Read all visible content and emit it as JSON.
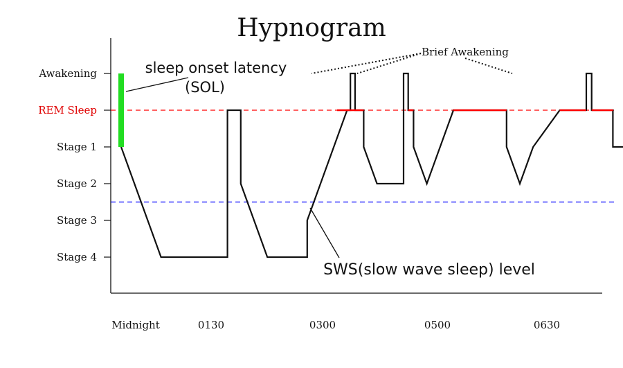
{
  "chart_data": {
    "type": "line",
    "title": "Hypnogram",
    "xlabel": "",
    "ylabel": "",
    "x_tick_labels": [
      "Midnight",
      "0130",
      "0300",
      "0500",
      "0630"
    ],
    "y_categories": [
      "Awakening",
      "REM Sleep",
      "Stage 1",
      "Stage 2",
      "Stage 3",
      "Stage 4"
    ],
    "y_values": {
      "Awakening": 5,
      "REM Sleep": 4,
      "Stage 1": 3,
      "Stage 2": 2,
      "Stage 3": 1,
      "Stage 4": 0
    },
    "x_tick_positions_hours": [
      0,
      1.5,
      3,
      5,
      6.5
    ],
    "xlim_hours": [
      0,
      8.8
    ],
    "ylim": [
      -1,
      6.5
    ],
    "reference_lines": [
      {
        "label": "REM Sleep",
        "y": 4,
        "color": "#ff0000",
        "style": "dashed"
      },
      {
        "label": "SWS(slow wave sleep) level",
        "y": 1.5,
        "color": "#0000ff",
        "style": "dashed"
      }
    ],
    "steps": [
      [
        0.2,
        3
      ],
      [
        0.4,
        2
      ],
      [
        0.6,
        1
      ],
      [
        0.8,
        0
      ],
      [
        1.8,
        0
      ],
      [
        1.8,
        4
      ],
      [
        2.0,
        4
      ],
      [
        2.0,
        2
      ],
      [
        2.2,
        1
      ],
      [
        2.4,
        0
      ],
      [
        3.0,
        0
      ],
      [
        3.0,
        1
      ],
      [
        3.2,
        2
      ],
      [
        3.4,
        3
      ],
      [
        3.6,
        4
      ],
      [
        3.65,
        4
      ],
      [
        3.65,
        5
      ],
      [
        3.72,
        5
      ],
      [
        3.72,
        4
      ],
      [
        3.85,
        4
      ],
      [
        3.85,
        3
      ],
      [
        4.05,
        2
      ],
      [
        4.45,
        2
      ],
      [
        4.45,
        5
      ],
      [
        4.52,
        5
      ],
      [
        4.52,
        4
      ],
      [
        4.6,
        4
      ],
      [
        4.6,
        3
      ],
      [
        4.8,
        2
      ],
      [
        5.0,
        3
      ],
      [
        5.2,
        4
      ],
      [
        6.0,
        4
      ],
      [
        6.0,
        3
      ],
      [
        6.2,
        2
      ],
      [
        6.4,
        3
      ],
      [
        6.8,
        4
      ],
      [
        7.2,
        4
      ],
      [
        7.2,
        5
      ],
      [
        7.28,
        5
      ],
      [
        7.28,
        4
      ],
      [
        7.6,
        4
      ],
      [
        7.6,
        3
      ],
      [
        8.0,
        3
      ],
      [
        8.0,
        5
      ],
      [
        8.4,
        5
      ]
    ],
    "rem_segments": [
      [
        3.45,
        3.85
      ],
      [
        4.52,
        4.6
      ],
      [
        5.2,
        6.0
      ],
      [
        6.8,
        7.2
      ],
      [
        7.28,
        7.6
      ]
    ],
    "sol": {
      "x": 0.2,
      "y_from": 3,
      "y_to": 5,
      "color": "#22dd22"
    },
    "annotations": {
      "sol_line1": "sleep onset latency",
      "sol_line2": "(SOL)",
      "brief_awakening": "Brief Awakening",
      "sws": "SWS(slow wave sleep) level"
    },
    "grid": false
  }
}
